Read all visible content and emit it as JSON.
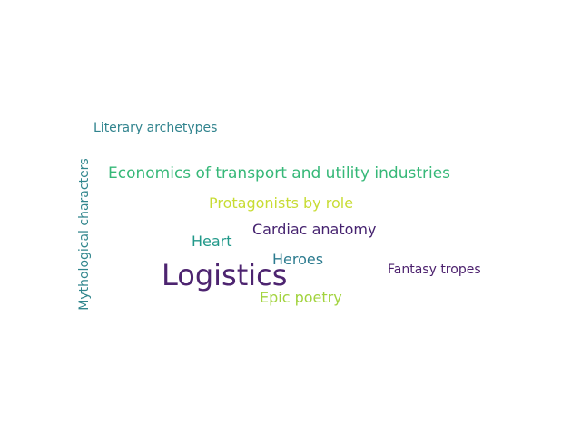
{
  "word_cloud": {
    "words": [
      {
        "id": "literary",
        "text": "Literary archetypes",
        "color": "#31848e"
      },
      {
        "id": "economics",
        "text": "Economics of transport and utility industries",
        "color": "#36b878"
      },
      {
        "id": "protag",
        "text": "Protagonists by role",
        "color": "#c8dc34"
      },
      {
        "id": "cardiac",
        "text": "Cardiac anatomy",
        "color": "#45226f"
      },
      {
        "id": "heart",
        "text": "Heart",
        "color": "#22998a"
      },
      {
        "id": "heroes",
        "text": "Heroes",
        "color": "#2c7b8f"
      },
      {
        "id": "logistics",
        "text": "Logistics",
        "color": "#4d2470"
      },
      {
        "id": "fantasy",
        "text": "Fantasy tropes",
        "color": "#4a1e6c"
      },
      {
        "id": "epic",
        "text": "Epic poetry",
        "color": "#a2d33e"
      },
      {
        "id": "mythical",
        "text": "Mythological characters",
        "color": "#31868d"
      }
    ]
  }
}
